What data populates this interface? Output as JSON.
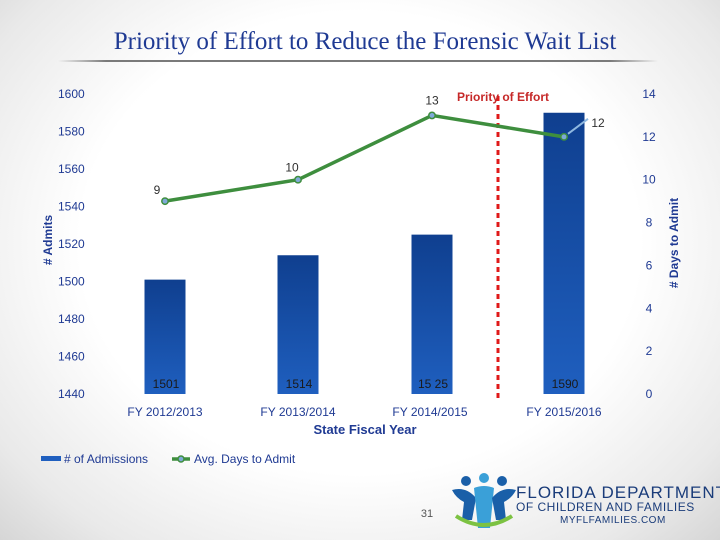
{
  "title": "Priority of Effort to Reduce the Forensic Wait List",
  "page_number": "31",
  "logo": {
    "line1": "FLORIDA DEPARTMENT",
    "line2": "OF CHILDREN AND FAMILIES",
    "line3": "MYFLFAMILIES.COM"
  },
  "colors": {
    "bar": "#1f5fbf",
    "bar_dark": "#0f3f8f",
    "line": "#3e8e3e",
    "marker": "#7fa9d8",
    "divider": "#e01919",
    "axis_text": "#1f3a93"
  },
  "chart_data": {
    "type": "bar",
    "xlabel": "State Fiscal Year",
    "ylabel": "# Admits",
    "y2label": "# Days to Admit",
    "ylim": [
      1440,
      1600
    ],
    "y2lim": [
      0,
      14
    ],
    "yticks": [
      1440,
      1460,
      1480,
      1500,
      1520,
      1540,
      1560,
      1580,
      1600
    ],
    "y2ticks": [
      0,
      2,
      4,
      6,
      8,
      10,
      12,
      14
    ],
    "categories": [
      "FY 2012/2013",
      "FY 2013/2014",
      "FY 2014/2015",
      "FY 2015/2016"
    ],
    "series": [
      {
        "name": "# of Admissions",
        "kind": "bar",
        "axis": "left",
        "values": [
          1501,
          1514,
          1525,
          1590
        ],
        "labels": [
          "1501",
          "1514",
          "15 25",
          "1590"
        ]
      },
      {
        "name": "Avg. Days to Admit",
        "kind": "line",
        "axis": "right",
        "values": [
          9,
          10,
          13,
          12
        ],
        "labels": [
          "9",
          "10",
          "13",
          "12"
        ]
      }
    ],
    "annotations": [
      {
        "text": "Priority of Effort",
        "between": [
          "FY 2014/2015",
          "FY 2015/2016"
        ]
      }
    ],
    "legend_position": "bottom-left",
    "grid": false
  }
}
